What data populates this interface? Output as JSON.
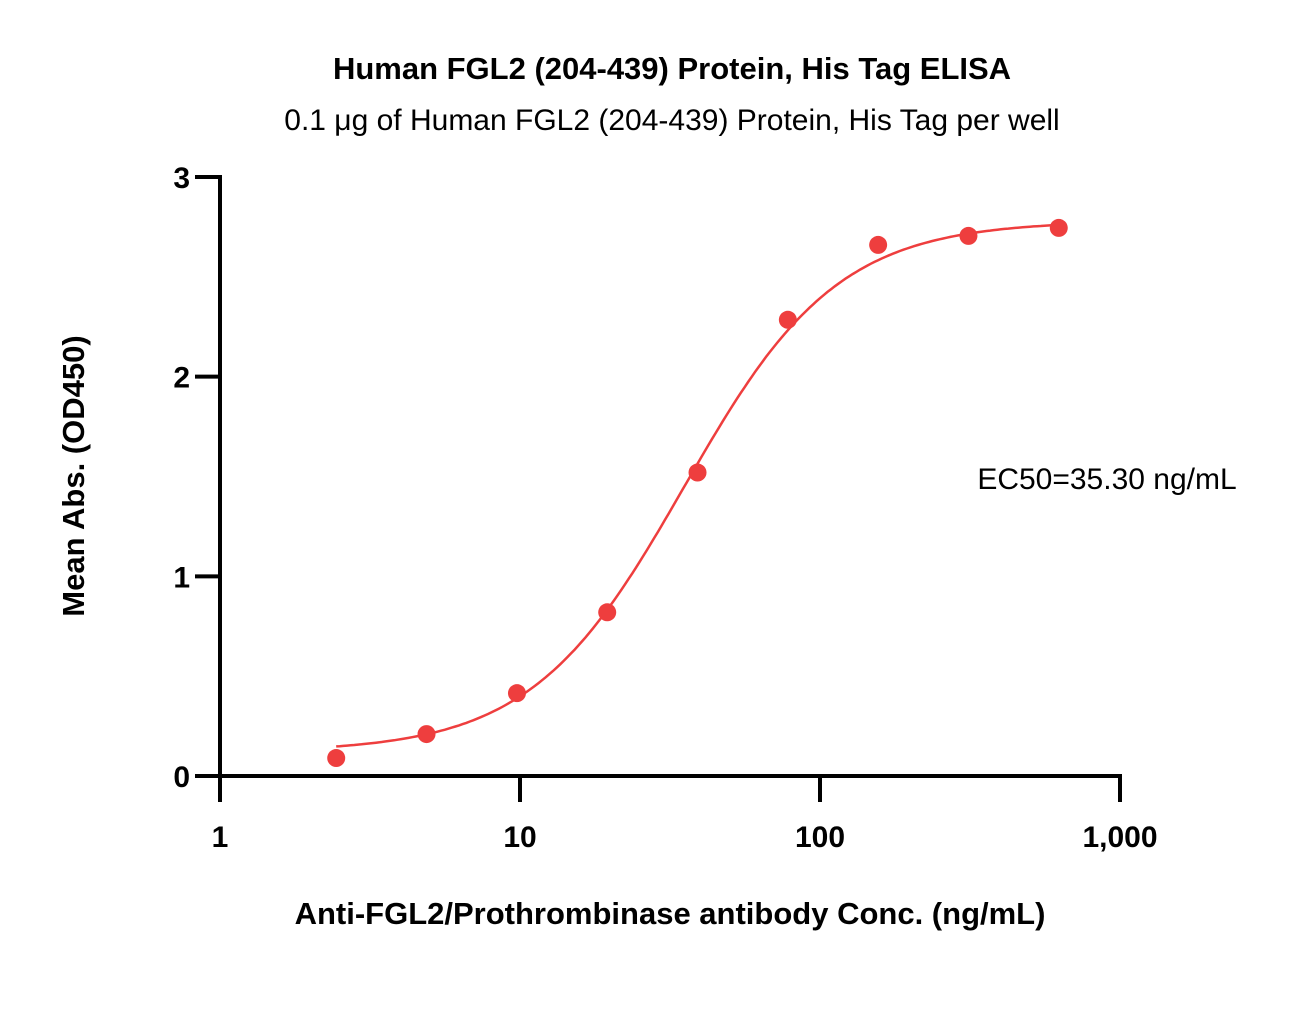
{
  "chart_data": {
    "type": "scatter",
    "title": "Human FGL2 (204-439) Protein, His Tag ELISA",
    "subtitle": "0.1 μg of Human FGL2 (204-439) Protein, His Tag per well",
    "xlabel": "Anti-FGL2/Prothrombinase antibody Conc. (ng/mL)",
    "ylabel": "Mean Abs. (OD450)",
    "xscale": "log",
    "xlim": [
      1,
      1000
    ],
    "ylim": [
      0,
      3
    ],
    "xticks": [
      1,
      10,
      100,
      1000
    ],
    "xtick_labels": [
      "1",
      "10",
      "100",
      "1,000"
    ],
    "yticks": [
      0,
      1,
      2,
      3
    ],
    "ytick_labels": [
      "0",
      "1",
      "2",
      "3"
    ],
    "grid": false,
    "color": "#ee3e3e",
    "series": [
      {
        "name": "ELISA",
        "x": [
          2.44,
          4.88,
          9.77,
          19.53,
          39.06,
          78.13,
          156.25,
          312.5,
          625
        ],
        "y": [
          0.09,
          0.21,
          0.415,
          0.82,
          1.52,
          2.285,
          2.66,
          2.705,
          2.745
        ]
      }
    ],
    "fit": {
      "model": "4PL",
      "bottom": 0.12,
      "top": 2.78,
      "ec50": 35.3,
      "hill": 1.7
    },
    "annotation": "EC50=35.30 ng/mL"
  }
}
